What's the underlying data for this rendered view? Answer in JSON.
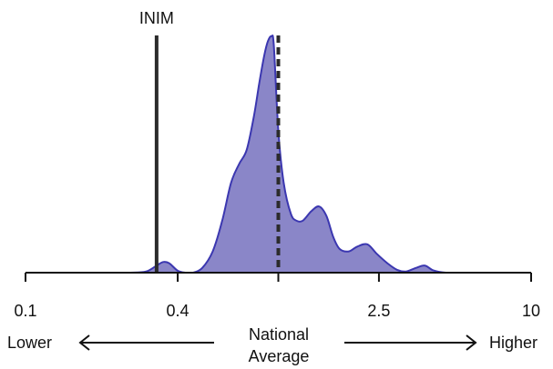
{
  "chart_data": {
    "type": "area",
    "x_scale": "log",
    "xlim": [
      0.1,
      10
    ],
    "ticks": [
      {
        "value": 0.1,
        "label": "0.1"
      },
      {
        "value": 0.4,
        "label": "0.4"
      },
      {
        "value": 1,
        "label": ""
      },
      {
        "value": 2.5,
        "label": "2.5"
      },
      {
        "value": 10,
        "label": "10"
      }
    ],
    "density": {
      "color": "#8a86c8",
      "stroke": "#3b37b0",
      "x": [
        0.2,
        0.26,
        0.3,
        0.33,
        0.35,
        0.37,
        0.4,
        0.43,
        0.46,
        0.5,
        0.55,
        0.6,
        0.65,
        0.7,
        0.75,
        0.8,
        0.84,
        0.88,
        0.91,
        0.94,
        0.96,
        1.0,
        1.05,
        1.12,
        1.18,
        1.25,
        1.35,
        1.45,
        1.55,
        1.65,
        1.75,
        1.9,
        2.05,
        2.25,
        2.45,
        2.7,
        2.95,
        3.2,
        3.5,
        3.8,
        4.1,
        4.6,
        5.2
      ],
      "y": [
        0,
        0,
        0.005,
        0.03,
        0.045,
        0.04,
        0.008,
        0,
        0,
        0.02,
        0.09,
        0.22,
        0.38,
        0.46,
        0.52,
        0.66,
        0.8,
        0.92,
        0.98,
        1.0,
        0.96,
        0.6,
        0.38,
        0.25,
        0.22,
        0.22,
        0.26,
        0.28,
        0.24,
        0.15,
        0.1,
        0.09,
        0.11,
        0.12,
        0.08,
        0.04,
        0.012,
        0.005,
        0.02,
        0.03,
        0.01,
        0,
        0
      ]
    },
    "reference_lines": [
      {
        "value": 0.33,
        "label": "INIM",
        "style": "solid"
      },
      {
        "value": 1.0,
        "label": "",
        "style": "dashed"
      }
    ],
    "annotations": {
      "left": "Lower",
      "center_line1": "National",
      "center_line2": "Average",
      "right": "Higher"
    }
  }
}
